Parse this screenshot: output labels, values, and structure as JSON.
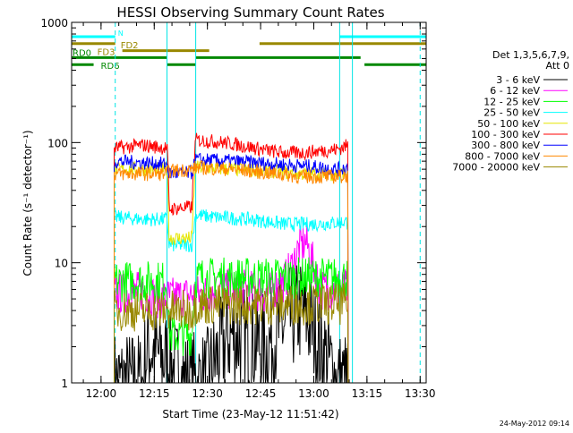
{
  "chart_data": {
    "type": "line",
    "title": "HESSI Observing Summary Count Rates",
    "xlabel": "Start Time (23-May-12 11:51:42)",
    "ylabel": "Count Rate (s⁻¹ detector⁻¹)",
    "ylog": true,
    "ylim": [
      1,
      1000
    ],
    "xlim_minutes_after_start": [
      0,
      100
    ],
    "x_start": "11:51:42",
    "x_ticks": [
      "12:00",
      "12:15",
      "12:30",
      "12:45",
      "13:00",
      "13:15",
      "13:30"
    ],
    "y_ticks": [
      "1",
      "10",
      "100",
      "1000"
    ],
    "legend_title": [
      "Det 1,3,5,6,7,9,",
      "Att 0"
    ],
    "legend_position": "right",
    "series": [
      {
        "name": "3 - 6 keV",
        "color": "#000000",
        "x": [
          12,
          20,
          21.5,
          32,
          38,
          45,
          55,
          60,
          65,
          70,
          75,
          78
        ],
        "y": [
          1,
          1,
          2,
          1,
          1,
          2.5,
          2,
          3,
          4,
          2,
          1,
          1
        ]
      },
      {
        "name": "6 - 12 keV",
        "color": "#ff00ff",
        "x": [
          12,
          20,
          25,
          30,
          38,
          42,
          48,
          55,
          60,
          62,
          64,
          66,
          68,
          70,
          75,
          78
        ],
        "y": [
          5.5,
          5.8,
          5,
          5.2,
          5.5,
          6,
          6,
          5.5,
          7,
          9,
          13,
          15,
          10,
          6,
          6,
          6
        ]
      },
      {
        "name": "12 - 25 keV",
        "color": "#00ff00",
        "x": [
          12,
          20,
          26.9,
          27.5,
          34,
          35,
          45,
          55,
          65,
          75,
          78
        ],
        "y": [
          7,
          7,
          7,
          2.5,
          2.5,
          7.5,
          7.5,
          7.5,
          7.5,
          7.5,
          7.5
        ]
      },
      {
        "name": "25 - 50 keV",
        "color": "#00ffff",
        "x": [
          12,
          20,
          26.9,
          27.5,
          34,
          35,
          40,
          50,
          60,
          70,
          78
        ],
        "y": [
          24,
          23,
          23,
          14,
          14,
          25,
          24,
          23,
          21,
          21,
          22
        ]
      },
      {
        "name": "50 - 100 keV",
        "color": "#e6e600",
        "x": [
          12,
          20,
          26.9,
          27.5,
          34,
          35,
          45,
          55,
          65,
          75,
          78
        ],
        "y": [
          60,
          60,
          60,
          16,
          16,
          62,
          60,
          58,
          55,
          55,
          56
        ]
      },
      {
        "name": "100 - 300 keV",
        "color": "#ff0000",
        "x": [
          12,
          16,
          20,
          26.9,
          27.5,
          34,
          35,
          40,
          45,
          50,
          55,
          60,
          65,
          70,
          75,
          78
        ],
        "y": [
          90,
          92,
          95,
          90,
          28,
          29,
          105,
          102,
          98,
          92,
          86,
          82,
          82,
          85,
          88,
          95
        ]
      },
      {
        "name": "300 - 800 keV",
        "color": "#0000ff",
        "x": [
          12,
          20,
          26.9,
          27.5,
          34,
          35,
          45,
          55,
          65,
          75,
          78
        ],
        "y": [
          70,
          68,
          66,
          55,
          56,
          72,
          70,
          67,
          64,
          60,
          62
        ]
      },
      {
        "name": "800 - 7000 keV",
        "color": "#ff8800",
        "x": [
          12,
          20,
          26.9,
          27.5,
          34,
          35,
          45,
          55,
          65,
          75,
          78
        ],
        "y": [
          55,
          55,
          55,
          58,
          60,
          62,
          60,
          56,
          52,
          52,
          53
        ]
      },
      {
        "name": "7000 - 20000 keV",
        "color": "#998800",
        "x": [
          12,
          20,
          26.9,
          27.5,
          34,
          35,
          45,
          55,
          65,
          75,
          78
        ],
        "y": [
          4,
          4,
          4,
          4,
          4,
          4.5,
          4.5,
          4.5,
          4.5,
          4.5,
          4.5
        ]
      }
    ],
    "flag_bars": [
      {
        "label": "N",
        "color": "#00ffff",
        "segments": [
          [
            0,
            12.3
          ],
          [
            75.6,
            100
          ]
        ]
      },
      {
        "label": "FD2",
        "color": "#998800",
        "segments": [
          [
            0,
            12.3
          ],
          [
            53,
            100
          ]
        ]
      },
      {
        "label": "FD3",
        "color": "#998800",
        "segments": [
          [
            14.3,
            38.8
          ]
        ]
      },
      {
        "label": "RD0",
        "color": "#008800",
        "segments": [
          [
            0,
            26.9
          ],
          [
            35,
            81.5
          ]
        ]
      },
      {
        "label": "RD6",
        "color": "#008800",
        "segments": [
          [
            0,
            6.2
          ],
          [
            27,
            35
          ],
          [
            82.6,
            100
          ]
        ]
      }
    ],
    "vertical_lines": [
      {
        "x": 0,
        "style": "solid"
      },
      {
        "x": 12.3,
        "style": "dashed"
      },
      {
        "x": 26.9,
        "style": "solid"
      },
      {
        "x": 35,
        "style": "solid"
      },
      {
        "x": 75.6,
        "style": "solid"
      },
      {
        "x": 79.2,
        "style": "solid"
      },
      {
        "x": 98.3,
        "style": "dashed"
      }
    ]
  },
  "footer_date": "24-May-2012 09:14"
}
